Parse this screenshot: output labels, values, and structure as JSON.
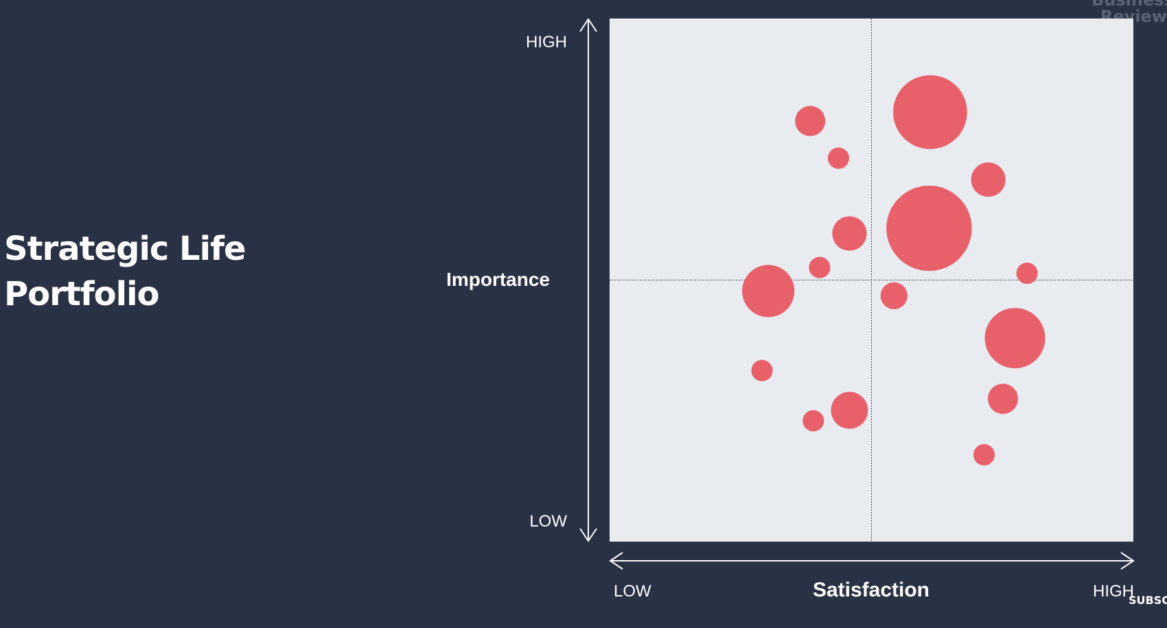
{
  "title": {
    "line1": "Strategic Life",
    "line2": "Portfolio"
  },
  "brand": {
    "line1": "Business",
    "line2": "Review"
  },
  "subscribe_label": "SUBSCRIBE",
  "chart_data": {
    "type": "scatter",
    "title": "",
    "xlabel": "Satisfaction",
    "ylabel": "Importance",
    "x_low_label": "LOW",
    "x_high_label": "HIGH",
    "y_low_label": "LOW",
    "y_high_label": "HIGH",
    "xlim": [
      0,
      100
    ],
    "ylim": [
      0,
      100
    ],
    "grid": false,
    "midlines": true,
    "bubble_color": "#e8606a",
    "plot_background": "#e8ecf1",
    "points": [
      {
        "x": 38.3,
        "y": 80.4,
        "size": 1
      },
      {
        "x": 43.7,
        "y": 73.3,
        "size": 0.5
      },
      {
        "x": 61.2,
        "y": 82.1,
        "size": 6
      },
      {
        "x": 72.3,
        "y": 69.2,
        "size": 1.3
      },
      {
        "x": 61.0,
        "y": 59.9,
        "size": 8
      },
      {
        "x": 45.8,
        "y": 58.9,
        "size": 1.3
      },
      {
        "x": 40.1,
        "y": 52.4,
        "size": 0.5
      },
      {
        "x": 79.7,
        "y": 51.3,
        "size": 0.5
      },
      {
        "x": 30.3,
        "y": 47.9,
        "size": 3
      },
      {
        "x": 54.3,
        "y": 47.0,
        "size": 0.8
      },
      {
        "x": 77.4,
        "y": 38.9,
        "size": 4
      },
      {
        "x": 29.1,
        "y": 32.7,
        "size": 0.5
      },
      {
        "x": 75.1,
        "y": 27.3,
        "size": 1
      },
      {
        "x": 45.8,
        "y": 25.1,
        "size": 1.5
      },
      {
        "x": 38.9,
        "y": 23.1,
        "size": 0.5
      },
      {
        "x": 71.5,
        "y": 16.6,
        "size": 0.5
      }
    ]
  }
}
